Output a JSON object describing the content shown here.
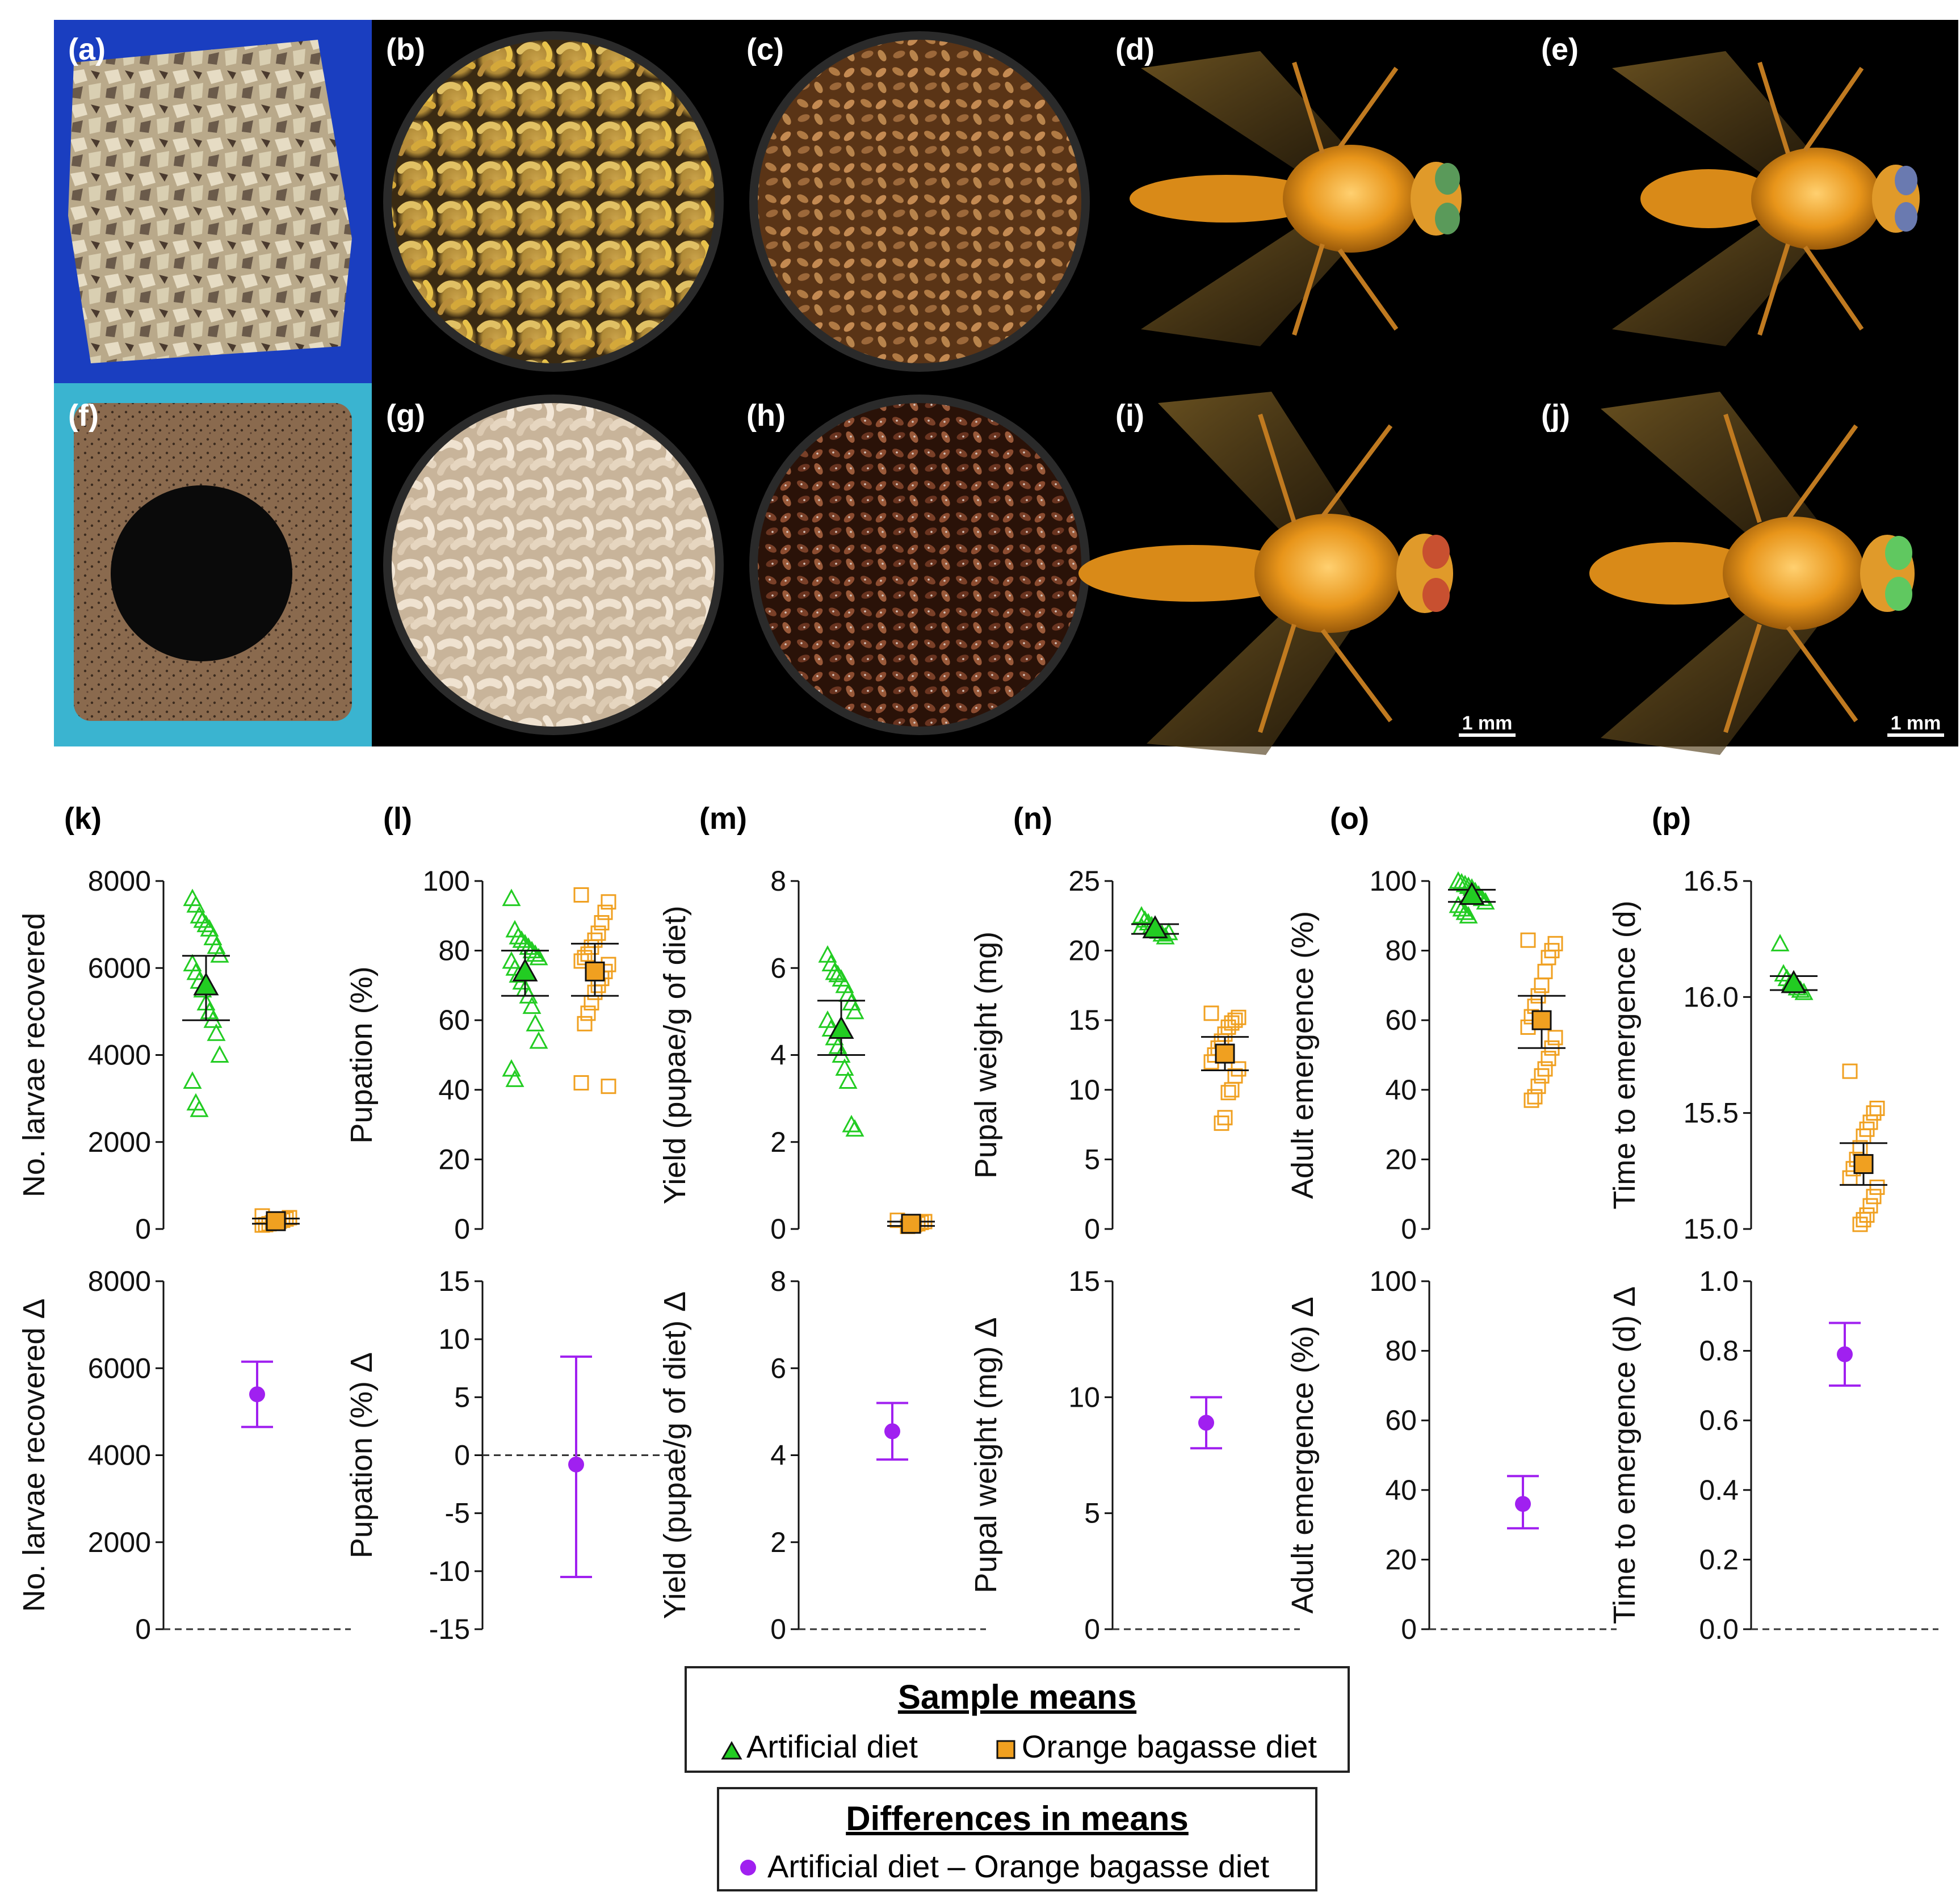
{
  "photo_panels": [
    {
      "label": "(a)",
      "subject": "orange bagasse diet"
    },
    {
      "label": "(b)",
      "subject": "larvae on orange bagasse diet"
    },
    {
      "label": "(c)",
      "subject": "pupae from orange bagasse diet"
    },
    {
      "label": "(d)",
      "subject": "adult fly"
    },
    {
      "label": "(e)",
      "subject": "adult fly"
    },
    {
      "label": "(f)",
      "subject": "artificial diet"
    },
    {
      "label": "(g)",
      "subject": "larvae on artificial diet"
    },
    {
      "label": "(h)",
      "subject": "pupae from artificial diet"
    },
    {
      "label": "(i)",
      "subject": "adult fly",
      "scale_bar": "1 mm"
    },
    {
      "label": "(j)",
      "subject": "adult fly",
      "scale_bar": "1 mm"
    }
  ],
  "colors": {
    "artificial": "#22cc22",
    "bagasse": "#f0a020",
    "delta": "#a020f0"
  },
  "chart_data": [
    {
      "label": "(k)",
      "type": "scatter",
      "ylabel": "No. larvae recovered",
      "ylim": [
        0,
        8000
      ],
      "yticks": [
        "0",
        "2000",
        "4000",
        "6000",
        "8000"
      ],
      "ytick_values": [
        0,
        2000,
        4000,
        6000,
        8000
      ],
      "artificial": {
        "mean": 5600,
        "ci": [
          4800,
          6280
        ],
        "points": [
          7600,
          7450,
          7200,
          7100,
          7000,
          6900,
          6700,
          6500,
          6300,
          6100,
          5900,
          5700,
          5500,
          5200,
          5000,
          4800,
          4500,
          4000,
          3400,
          2900,
          2750
        ]
      },
      "bagasse": {
        "mean": 180,
        "ci": [
          120,
          240
        ],
        "points": [
          300,
          260,
          230,
          200,
          180,
          160,
          140,
          120,
          100,
          90
        ]
      }
    },
    {
      "label": "(l)",
      "type": "scatter",
      "ylabel": "Pupation (%)",
      "ylim": [
        0,
        100
      ],
      "yticks": [
        "0",
        "20",
        "40",
        "60",
        "80",
        "100"
      ],
      "ytick_values": [
        0,
        20,
        40,
        60,
        80,
        100
      ],
      "artificial": {
        "mean": 74,
        "ci": [
          67,
          80
        ],
        "points": [
          95,
          86,
          84,
          83,
          82,
          81,
          80,
          79,
          78,
          77,
          75,
          73,
          71,
          69,
          67,
          64,
          59,
          54,
          46,
          43
        ]
      },
      "bagasse": {
        "mean": 74,
        "ci": [
          67,
          82
        ],
        "points": [
          96,
          94,
          91,
          88,
          85,
          83,
          81,
          79,
          78,
          77,
          76,
          74,
          72,
          70,
          68,
          65,
          62,
          59,
          42,
          41
        ]
      }
    },
    {
      "label": "(m)",
      "type": "scatter",
      "ylabel": "Yield (pupae/g of diet)",
      "ylim": [
        0,
        8
      ],
      "yticks": [
        "0",
        "2",
        "4",
        "6",
        "8"
      ],
      "ytick_values": [
        0,
        2,
        4,
        6,
        8
      ],
      "artificial": {
        "mean": 4.6,
        "ci": [
          4.0,
          5.25
        ],
        "points": [
          6.3,
          6.1,
          5.9,
          5.85,
          5.75,
          5.6,
          5.4,
          5.2,
          5.0,
          4.8,
          4.6,
          4.4,
          4.2,
          4.0,
          3.7,
          3.4,
          2.4,
          2.3
        ]
      },
      "bagasse": {
        "mean": 0.12,
        "ci": [
          0.07,
          0.17
        ],
        "points": [
          0.2,
          0.17,
          0.15,
          0.12,
          0.1,
          0.08,
          0.06
        ]
      }
    },
    {
      "label": "(n)",
      "type": "scatter",
      "ylabel": "Pupal weight (mg)",
      "ylim": [
        0,
        25
      ],
      "yticks": [
        "0",
        "5",
        "10",
        "15",
        "20",
        "25"
      ],
      "ytick_values": [
        0,
        5,
        10,
        15,
        20,
        25
      ],
      "artificial": {
        "mean": 21.6,
        "ci": [
          21.2,
          21.9
        ],
        "points": [
          22.5,
          22.2,
          22.0,
          21.8,
          21.6,
          21.4,
          21.2,
          21.0,
          21.3,
          21.7
        ]
      },
      "bagasse": {
        "mean": 12.6,
        "ci": [
          11.4,
          13.8
        ],
        "points": [
          15.5,
          15.2,
          15.0,
          14.8,
          14.5,
          14.0,
          13.5,
          13.0,
          12.5,
          12.0,
          11.5,
          11.0,
          10.0,
          9.8,
          8.0,
          7.6
        ]
      }
    },
    {
      "label": "(o)",
      "type": "scatter",
      "ylabel": "Adult emergence (%)",
      "ylim": [
        0,
        100
      ],
      "yticks": [
        "0",
        "20",
        "40",
        "60",
        "80",
        "100"
      ],
      "ytick_values": [
        0,
        20,
        40,
        60,
        80,
        100
      ],
      "artificial": {
        "mean": 96,
        "ci": [
          94,
          97.5
        ],
        "points": [
          100,
          99.5,
          99,
          98.5,
          98,
          97,
          96,
          95,
          94,
          93,
          92,
          91,
          90
        ]
      },
      "bagasse": {
        "mean": 60,
        "ci": [
          52,
          67
        ],
        "points": [
          83,
          82,
          80,
          78,
          74,
          70,
          67,
          64,
          61,
          58,
          55,
          52,
          49,
          46,
          44,
          41,
          38,
          37
        ]
      }
    },
    {
      "label": "(p)",
      "type": "scatter",
      "ylabel": "Time to emergence (d)",
      "ylim": [
        15.0,
        16.5
      ],
      "yticks": [
        "15.0",
        "15.5",
        "16.0",
        "16.5"
      ],
      "ytick_values": [
        15.0,
        15.5,
        16.0,
        16.5
      ],
      "artificial": {
        "mean": 16.06,
        "ci": [
          16.03,
          16.09
        ],
        "points": [
          16.23,
          16.1,
          16.08,
          16.06,
          16.05,
          16.04,
          16.03,
          16.02
        ]
      },
      "bagasse": {
        "mean": 15.28,
        "ci": [
          15.19,
          15.37
        ],
        "points": [
          15.68,
          15.52,
          15.5,
          15.46,
          15.43,
          15.4,
          15.35,
          15.3,
          15.26,
          15.22,
          15.18,
          15.14,
          15.1,
          15.06,
          15.04,
          15.02
        ]
      }
    },
    {
      "type": "scatter",
      "ylabel": "No. larvae recovered Δ",
      "ylim": [
        0,
        8000
      ],
      "yticks": [
        "0",
        "2000",
        "4000",
        "6000",
        "8000"
      ],
      "ytick_values": [
        0,
        2000,
        4000,
        6000,
        8000
      ],
      "zero": 0,
      "delta": {
        "mean": 5400,
        "ci": [
          4650,
          6150
        ]
      }
    },
    {
      "type": "scatter",
      "ylabel": "Pupation (%) Δ",
      "ylim": [
        -15,
        15
      ],
      "yticks": [
        "-15",
        "-10",
        "-5",
        "0",
        "5",
        "10",
        "15"
      ],
      "ytick_values": [
        -15,
        -10,
        -5,
        0,
        5,
        10,
        15
      ],
      "zero": 0,
      "delta": {
        "mean": -0.8,
        "ci": [
          -10.5,
          8.5
        ]
      }
    },
    {
      "type": "scatter",
      "ylabel": "Yield (pupae/g of diet) Δ",
      "ylim": [
        0,
        8
      ],
      "yticks": [
        "0",
        "2",
        "4",
        "6",
        "8"
      ],
      "ytick_values": [
        0,
        2,
        4,
        6,
        8
      ],
      "zero": 0,
      "delta": {
        "mean": 4.55,
        "ci": [
          3.9,
          5.2
        ]
      }
    },
    {
      "type": "scatter",
      "ylabel": "Pupal weight (mg) Δ",
      "ylim": [
        0,
        15
      ],
      "yticks": [
        "0",
        "5",
        "10",
        "15"
      ],
      "ytick_values": [
        0,
        5,
        10,
        15
      ],
      "zero": 0,
      "delta": {
        "mean": 8.9,
        "ci": [
          7.8,
          10.0
        ]
      }
    },
    {
      "type": "scatter",
      "ylabel": "Adult emergence (%) Δ",
      "ylim": [
        0,
        100
      ],
      "yticks": [
        "0",
        "20",
        "40",
        "60",
        "80",
        "100"
      ],
      "ytick_values": [
        0,
        20,
        40,
        60,
        80,
        100
      ],
      "zero": 0,
      "delta": {
        "mean": 36,
        "ci": [
          29,
          44
        ]
      }
    },
    {
      "type": "scatter",
      "ylabel": "Time to emergence (d) Δ",
      "ylim": [
        0.0,
        1.0
      ],
      "yticks": [
        "0.0",
        "0.2",
        "0.4",
        "0.6",
        "0.8",
        "1.0"
      ],
      "ytick_values": [
        0.0,
        0.2,
        0.4,
        0.6,
        0.8,
        1.0
      ],
      "zero": 0,
      "delta": {
        "mean": 0.79,
        "ci": [
          0.7,
          0.88
        ]
      }
    }
  ],
  "legend": {
    "sample_means_title": "Sample means",
    "artificial_label": "Artificial diet",
    "bagasse_label": "Orange bagasse diet",
    "differences_title": "Differences in means",
    "difference_label": "Artificial diet – Orange bagasse diet"
  }
}
